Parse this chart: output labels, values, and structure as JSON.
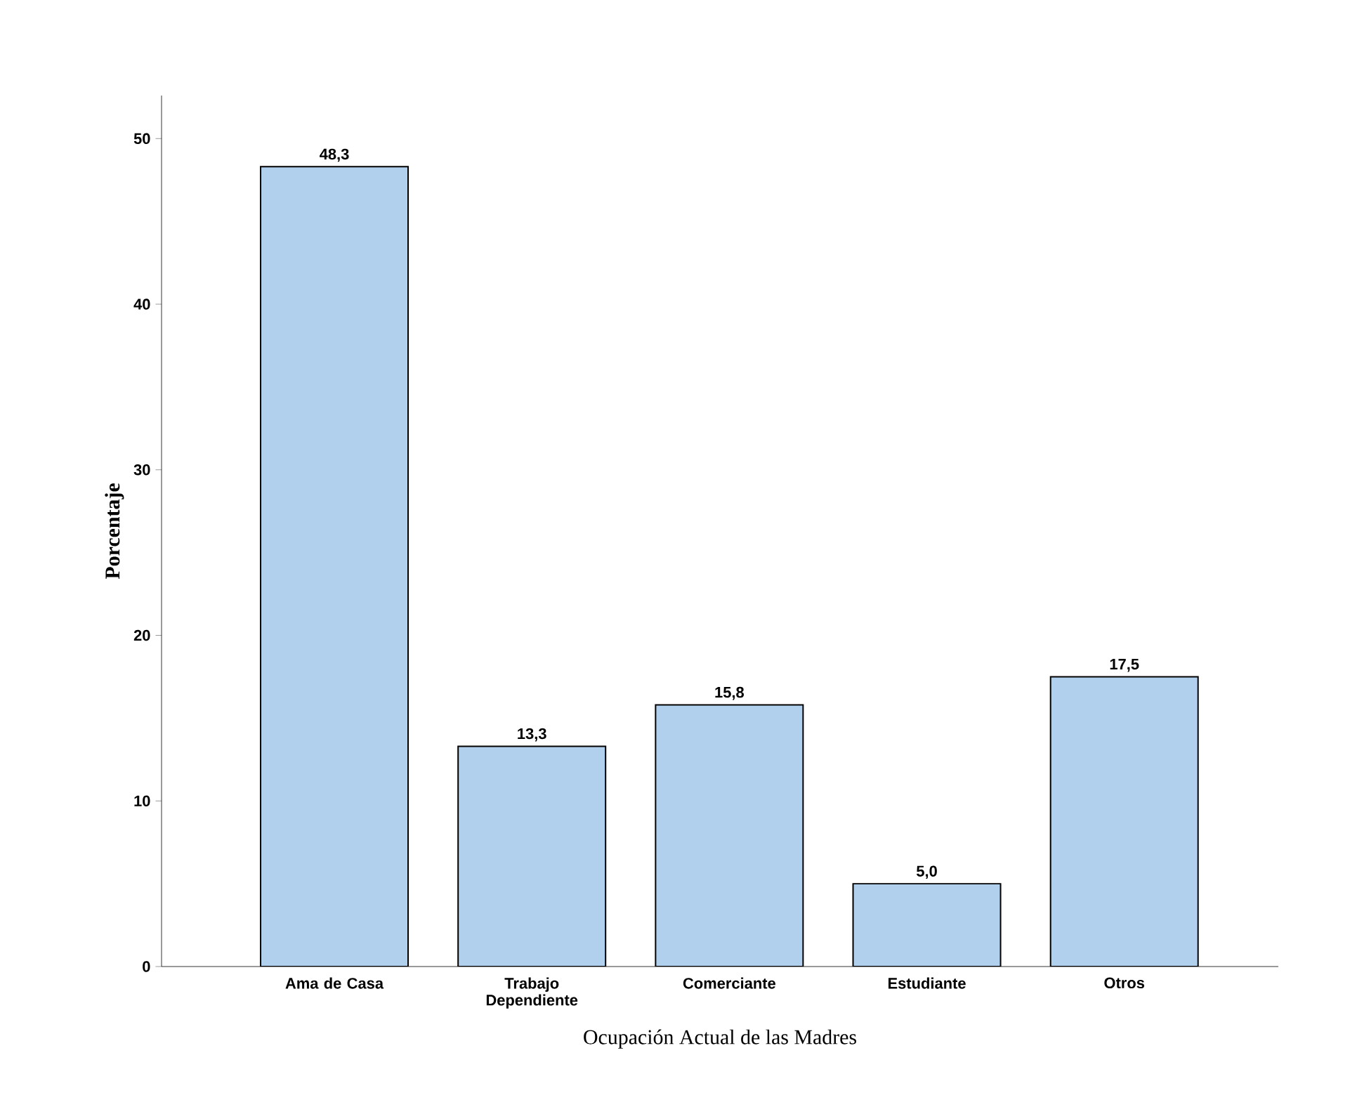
{
  "chart_data": {
    "type": "bar",
    "xlabel": "Ocupación Actual de las Madres",
    "ylabel": "Porcentaje",
    "categories": [
      "Ama de Casa",
      "Trabajo Dependiente",
      "Comerciante",
      "Estudiante",
      "Otros"
    ],
    "values": [
      48.3,
      13.3,
      15.8,
      5.0,
      17.5
    ],
    "value_labels": [
      "48,3",
      "13,3",
      "15,8",
      "5,0",
      "17,5"
    ],
    "color": "#b0d0ee",
    "ylim": [
      0,
      52.6
    ],
    "yticks": [
      0,
      10,
      20,
      30,
      40,
      50
    ]
  }
}
